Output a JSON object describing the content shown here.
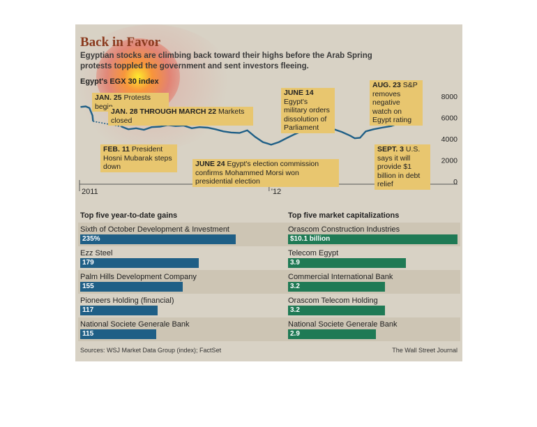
{
  "header": {
    "title": "Back in Favor",
    "subtitle": "Egyptian stocks are climbing back toward their highs before the Arab Spring protests toppled the government and sent investors fleeing.",
    "index_label": "Egypt's EGX 30 index"
  },
  "annotations": [
    {
      "date": "JAN. 25",
      "text": "Protests begin"
    },
    {
      "date": "JAN. 28 THROUGH MARCH 22",
      "text": "Markets closed"
    },
    {
      "date": "FEB. 11",
      "text": "President Hosni Mubarak steps down"
    },
    {
      "date": "JUNE 14",
      "text": "Egypt's military orders dissolution of Parliament"
    },
    {
      "date": "JUNE 24",
      "text": "Egypt's election commission confirms Mohammed Morsi won presidential election"
    },
    {
      "date": "AUG. 23",
      "text": "S&P removes negative watch on Egypt rating"
    },
    {
      "date": "SEPT. 3",
      "text": "U.S. says it will provide $1 billion in debt relief"
    }
  ],
  "gains": {
    "title": "Top five year-to-date gains",
    "items": [
      {
        "name": "Sixth of October Development & Investment",
        "label": "235%",
        "value": 235
      },
      {
        "name": "Ezz Steel",
        "label": "179",
        "value": 179
      },
      {
        "name": "Palm Hills Development Company",
        "label": "155",
        "value": 155
      },
      {
        "name": "Pioneers Holding (financial)",
        "label": "117",
        "value": 117
      },
      {
        "name": "National Societe Generale Bank",
        "label": "115",
        "value": 115
      }
    ]
  },
  "caps": {
    "title": "Top five market capitalizations",
    "items": [
      {
        "name": "Orascom Construction Industries",
        "label": "$10.1 billion",
        "value": 10.1
      },
      {
        "name": "Telecom Egypt",
        "label": "3.9",
        "value": 3.9
      },
      {
        "name": "Commercial International Bank",
        "label": "3.2",
        "value": 3.2
      },
      {
        "name": "Orascom Telecom Holding",
        "label": "3.2",
        "value": 3.2
      },
      {
        "name": "National Societe Generale Bank",
        "label": "2.9",
        "value": 2.9
      }
    ]
  },
  "footer": {
    "sources": "Sources: WSJ Market Data Group (index); FactSet",
    "credit": "The Wall Street Journal"
  },
  "colors": {
    "panel": "#d8d2c5",
    "line": "#1f5f86",
    "gains_bar": "#1f5f86",
    "caps_bar": "#1f7a55",
    "title": "#8a3a1e",
    "annotation": "#e8c66f"
  },
  "chart_data": [
    {
      "type": "line",
      "title": "Egypt's EGX 30 index",
      "x_ticks": [
        "2011",
        "'12"
      ],
      "y_ticks": [
        0,
        2000,
        4000,
        6000,
        8000
      ],
      "ylim": [
        0,
        8000
      ],
      "xlim": [
        "2011-01-01",
        "2012-09-15"
      ],
      "grid": false,
      "series": [
        {
          "x": [
            "2011-01-03",
            "2011-01-13",
            "2011-01-20",
            "2011-01-26",
            "2011-01-27",
            "2011-03-23",
            "2011-04-05",
            "2011-04-20",
            "2011-05-05",
            "2011-05-20",
            "2011-06-05",
            "2011-06-20",
            "2011-07-05",
            "2011-07-20",
            "2011-08-05",
            "2011-08-20",
            "2011-09-05",
            "2011-09-20",
            "2011-10-05",
            "2011-10-20",
            "2011-11-05",
            "2011-11-20",
            "2011-12-05",
            "2011-12-20",
            "2012-01-05",
            "2012-01-20",
            "2012-02-05",
            "2012-02-20",
            "2012-03-05",
            "2012-03-20",
            "2012-04-05",
            "2012-04-20",
            "2012-05-05",
            "2012-05-20",
            "2012-06-05",
            "2012-06-14",
            "2012-06-24",
            "2012-07-05",
            "2012-07-20",
            "2012-08-05",
            "2012-08-23",
            "2012-09-03",
            "2012-09-10"
          ],
          "y": [
            7000,
            7050,
            6900,
            6200,
            5650,
            5150,
            4900,
            5000,
            4850,
            5100,
            5150,
            5300,
            5200,
            5250,
            5000,
            5100,
            5050,
            4900,
            4700,
            4600,
            4550,
            4800,
            4200,
            3700,
            3450,
            3700,
            4100,
            4450,
            4750,
            5000,
            4900,
            5100,
            4900,
            4650,
            4300,
            4050,
            4100,
            4700,
            4900,
            5050,
            5200,
            5400,
            5550
          ]
        }
      ]
    },
    {
      "type": "bar",
      "title": "Top five year-to-date gains",
      "categories": [
        "Sixth of October Development & Investment",
        "Ezz Steel",
        "Palm Hills Development Company",
        "Pioneers Holding (financial)",
        "National Societe Generale Bank"
      ],
      "values": [
        235,
        179,
        155,
        117,
        115
      ],
      "unit": "%"
    },
    {
      "type": "bar",
      "title": "Top five market capitalizations",
      "categories": [
        "Orascom Construction Industries",
        "Telecom Egypt",
        "Commercial International Bank",
        "Orascom Telecom Holding",
        "National Societe Generale Bank"
      ],
      "values": [
        10.1,
        3.9,
        3.2,
        3.2,
        2.9
      ],
      "unit": "$ billion"
    }
  ]
}
